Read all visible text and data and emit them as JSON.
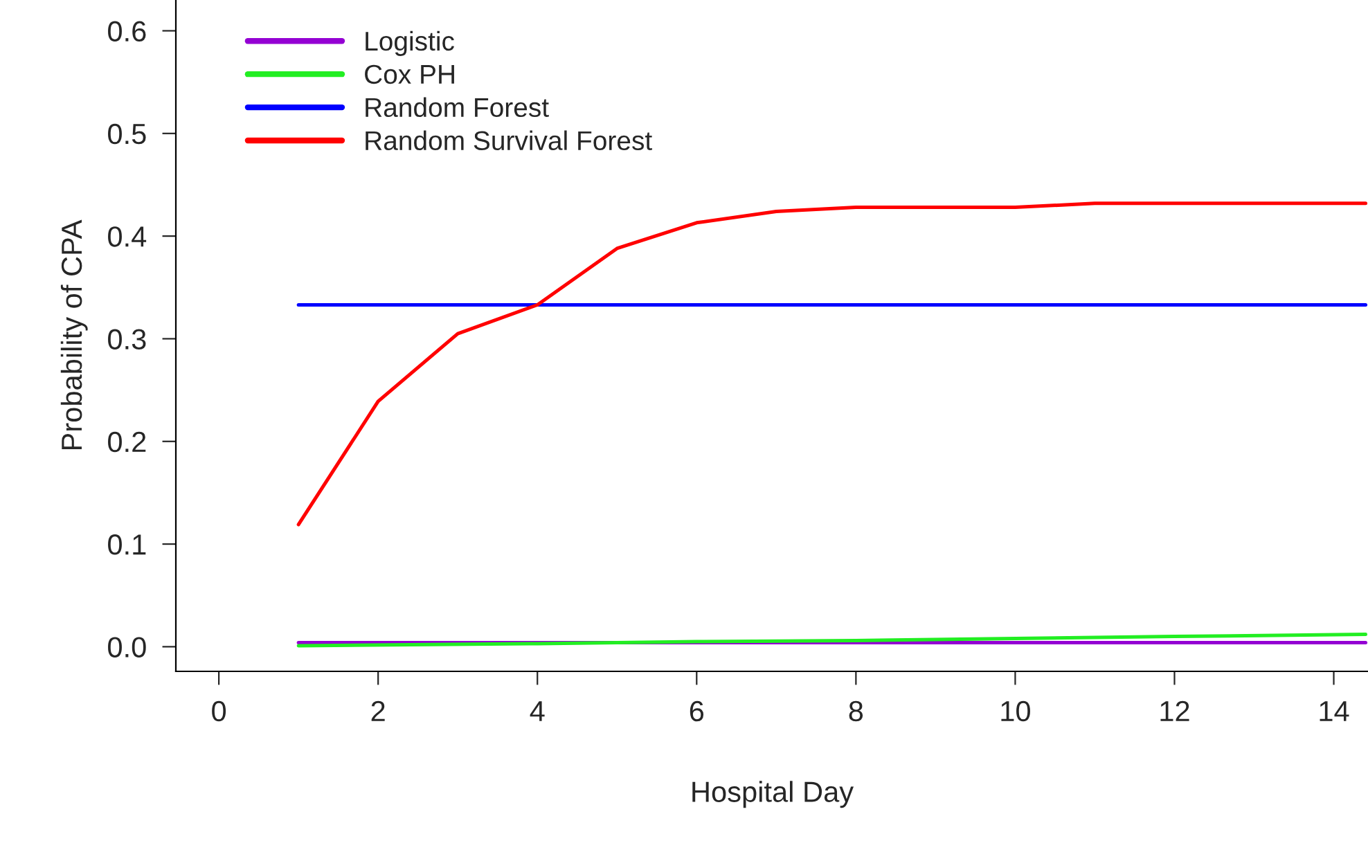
{
  "chart_data": {
    "type": "line",
    "xlabel": "Hospital Day",
    "ylabel": "Probability of CPA",
    "xlim": [
      -0.54,
      14.43
    ],
    "xticks": [
      0,
      2,
      4,
      6,
      8,
      10,
      12,
      14
    ],
    "ylim": [
      -0.024,
      0.63
    ],
    "yticks": [
      {
        "value": 0,
        "label": "0.0"
      },
      {
        "value": 0.1,
        "label": "0.1"
      },
      {
        "value": 0.2,
        "label": "0.2"
      },
      {
        "value": 0.3,
        "label": "0.3"
      },
      {
        "value": 0.4,
        "label": "0.4"
      },
      {
        "value": 0.5,
        "label": "0.5"
      },
      {
        "value": 0.6,
        "label": "0.6"
      }
    ],
    "grid": false,
    "legend": "top left",
    "line_style": "solid",
    "marker": "none",
    "series": [
      {
        "name": "Logistic",
        "color": "#9400d3",
        "x": [
          1,
          14.4
        ],
        "values": [
          0.004,
          0.004
        ]
      },
      {
        "name": "Cox PH",
        "color": "#22ee22",
        "x": [
          1,
          4,
          6,
          8,
          10,
          12,
          14.4
        ],
        "values": [
          0.001,
          0.003,
          0.005,
          0.006,
          0.008,
          0.01,
          0.012
        ]
      },
      {
        "name": "Random Forest",
        "color": "#0000ff",
        "x": [
          1,
          14.4
        ],
        "values": [
          0.333,
          0.333
        ]
      },
      {
        "name": "Random Survival Forest",
        "color": "#ff0000",
        "x": [
          1,
          2,
          3,
          4,
          5,
          6,
          7,
          8,
          10,
          11,
          14.4
        ],
        "values": [
          0.119,
          0.239,
          0.305,
          0.333,
          0.388,
          0.413,
          0.424,
          0.428,
          0.428,
          0.432,
          0.432
        ]
      }
    ]
  }
}
